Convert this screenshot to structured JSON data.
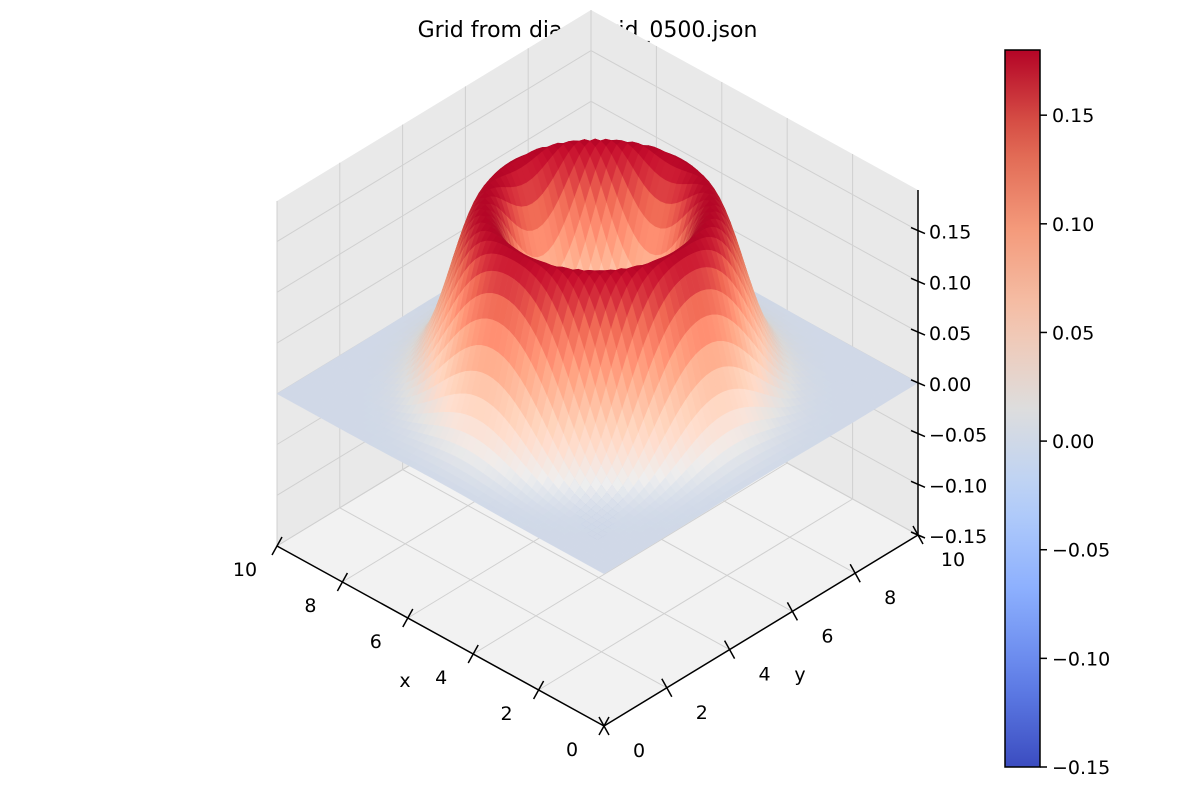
{
  "chart_data": {
    "type": "surface3d",
    "title": "Grid from diags/grid_0500.json",
    "xlabel": "x",
    "ylabel": "y",
    "xlim": [
      0,
      10
    ],
    "ylim": [
      0,
      10
    ],
    "zlim": [
      -0.15,
      0.19
    ],
    "x_ticks": [
      0,
      2,
      4,
      6,
      8,
      10
    ],
    "y_ticks": [
      0,
      2,
      4,
      6,
      8,
      10
    ],
    "z_ticks": [
      -0.15,
      -0.1,
      -0.05,
      0.0,
      0.05,
      0.1,
      0.15
    ],
    "z_tick_labels": [
      "−0.15",
      "−0.10",
      "−0.05",
      "0.00",
      "0.05",
      "0.10",
      "0.15"
    ],
    "colormap": "coolwarm",
    "colorbar": {
      "min": -0.15,
      "max": 0.18,
      "ticks": [
        -0.15,
        -0.1,
        -0.05,
        0.0,
        0.05,
        0.1,
        0.15
      ],
      "tick_labels": [
        "−0.15",
        "−0.10",
        "−0.05",
        "0.00",
        "0.05",
        "0.10",
        "0.15"
      ]
    },
    "surface": {
      "description_of_shape": "ring",
      "center": [
        5,
        5
      ],
      "ring_radius": 2.5,
      "ring_width": 1.1,
      "peak": 0.18,
      "center_dip": -0.15,
      "dip_radius": 1.2,
      "grid_points": 61
    },
    "grid": true,
    "colorbar_placement": "right"
  },
  "colors": {
    "pane": "#f2f2f2",
    "pane_dark": "#e9e9e9",
    "grid_line": "#d0d0d0"
  }
}
